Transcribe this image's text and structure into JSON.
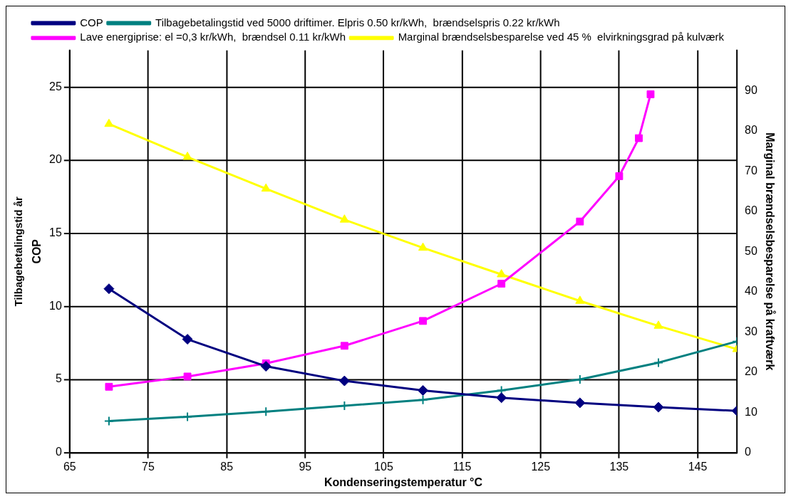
{
  "chart_data": {
    "type": "line",
    "xlabel": "Kondenseringstemperatur °C",
    "ylabel": "COP",
    "y2label": "Marginal brændselsbesparelse på kraftværk",
    "annotations": [
      "Tilbagebetalingstid år"
    ],
    "xlim": [
      65,
      150
    ],
    "xticks": [
      65,
      75,
      85,
      95,
      105,
      115,
      125,
      135,
      145
    ],
    "ylim": [
      0,
      27.5
    ],
    "yticks": [
      0,
      5,
      10,
      15,
      20,
      25
    ],
    "y2lim": [
      0,
      100
    ],
    "y2ticks": [
      0,
      10,
      20,
      30,
      40,
      50,
      60,
      70,
      80,
      90
    ],
    "grid": true,
    "legend": "top",
    "line_style": "solid",
    "series": [
      {
        "name": "COP",
        "color": "#000080",
        "marker": "diamond",
        "x": [
          70,
          80,
          90,
          100,
          110,
          120,
          130,
          140,
          150
        ],
        "values": [
          11.2,
          7.75,
          5.9,
          4.9,
          4.25,
          3.75,
          3.4,
          3.1,
          2.85
        ]
      },
      {
        "name": "Tilbagebetalingstid ved 5000 driftimer. Elpris 0.50 kr/kWh,  brændselspris 0.22 kr/kWh",
        "color": "#008080",
        "marker": "cross",
        "x": [
          70,
          80,
          90,
          100,
          110,
          120,
          130,
          140,
          150
        ],
        "values": [
          2.15,
          2.45,
          2.8,
          3.2,
          3.6,
          4.25,
          5.0,
          6.15,
          7.6
        ]
      },
      {
        "name": "Lave energiprise: el =0,3 kr/kWh,  brændsel 0.11 kr/kWh",
        "color": "#ff00ff",
        "marker": "square",
        "x": [
          70,
          80,
          90,
          100,
          110,
          120,
          130,
          135,
          137.5,
          139
        ],
        "values": [
          4.5,
          5.2,
          6.1,
          7.3,
          9.0,
          11.55,
          15.8,
          18.9,
          21.5,
          24.5
        ]
      },
      {
        "name": "Marginal brændselsbesparelse ved 45 %  elvirkningsgrad på kulværk",
        "color": "#ffff00",
        "marker": "triangle",
        "axis": "y2",
        "x": [
          70,
          80,
          90,
          100,
          110,
          120,
          130,
          140,
          150
        ],
        "values": [
          81.7,
          73.5,
          65.6,
          57.9,
          50.9,
          44.3,
          37.7,
          31.5,
          25.7
        ]
      }
    ]
  }
}
